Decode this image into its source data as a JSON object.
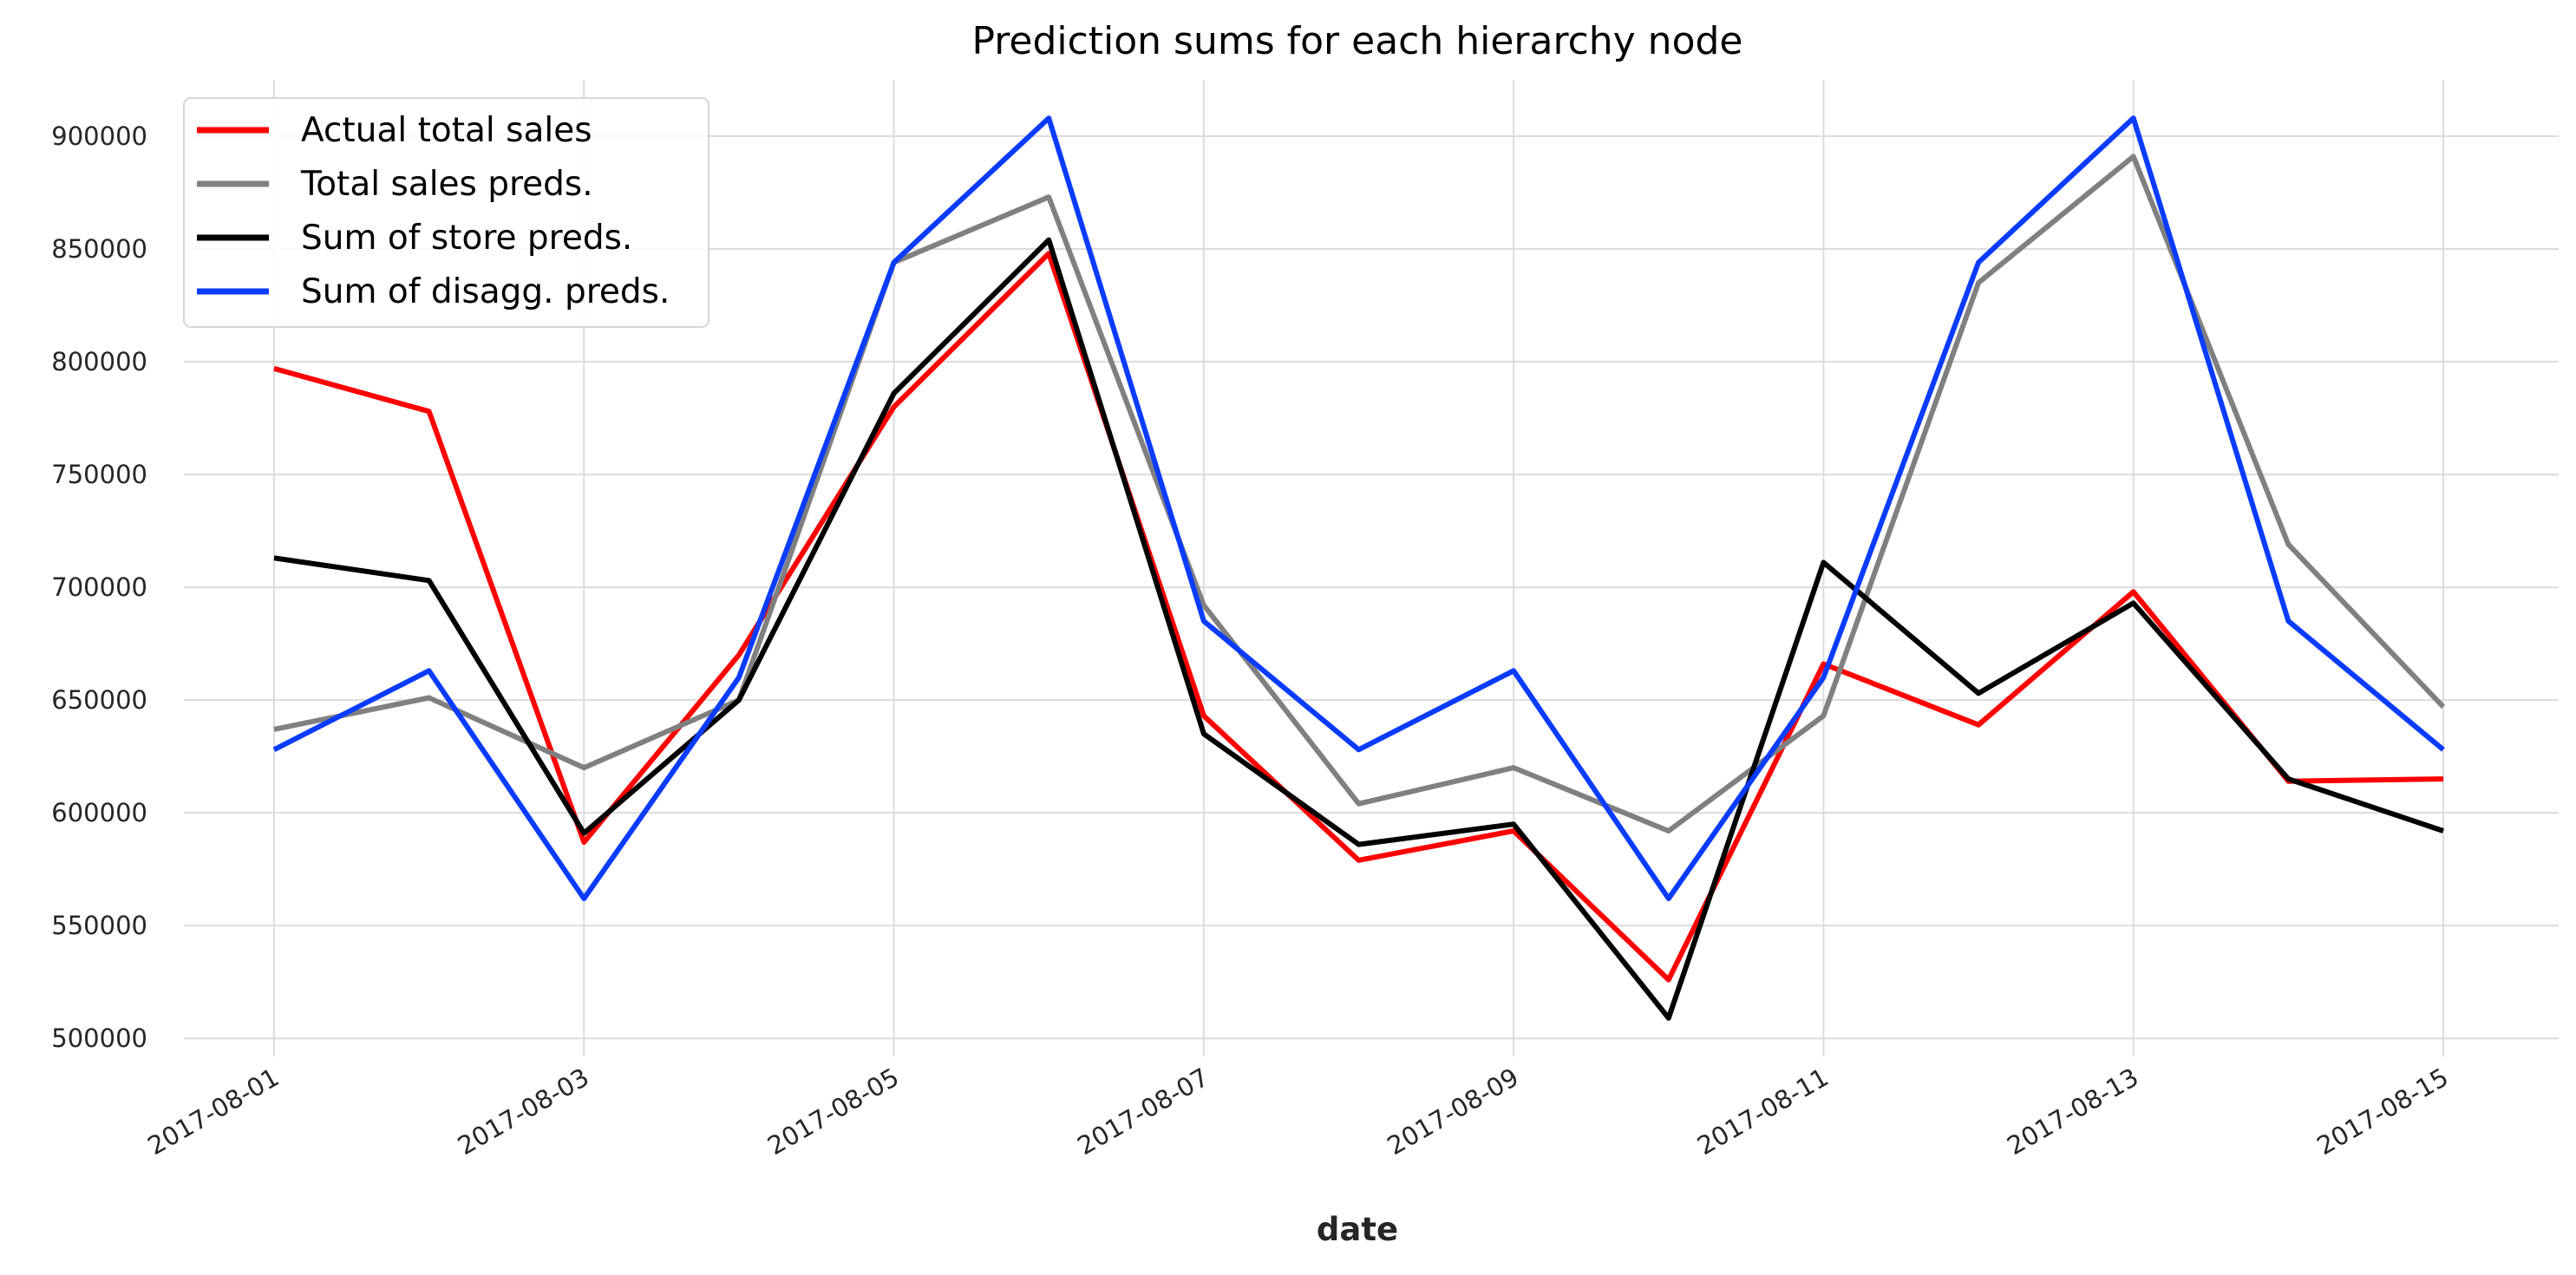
{
  "chart_data": {
    "type": "line",
    "title": "Prediction sums for each hierarchy node",
    "xlabel": "date",
    "ylabel": "",
    "x": [
      "2017-08-01",
      "2017-08-02",
      "2017-08-03",
      "2017-08-04",
      "2017-08-05",
      "2017-08-06",
      "2017-08-07",
      "2017-08-08",
      "2017-08-09",
      "2017-08-10",
      "2017-08-11",
      "2017-08-12",
      "2017-08-13",
      "2017-08-14",
      "2017-08-15"
    ],
    "x_tick_labels": [
      "2017-08-01",
      "2017-08-03",
      "2017-08-05",
      "2017-08-07",
      "2017-08-09",
      "2017-08-11",
      "2017-08-13",
      "2017-08-15"
    ],
    "y_ticks": [
      500000,
      550000,
      600000,
      650000,
      700000,
      750000,
      800000,
      850000,
      900000
    ],
    "ylim": [
      492000,
      925000
    ],
    "grid": true,
    "legend_position": "top-left",
    "series": [
      {
        "name": "Actual total sales",
        "color": "#ff0000",
        "values": [
          797000,
          778000,
          587000,
          670000,
          780000,
          848000,
          643000,
          579000,
          592000,
          526000,
          666000,
          639000,
          698000,
          614000,
          615000
        ]
      },
      {
        "name": "Total sales preds.",
        "color": "#808080",
        "values": [
          637000,
          651000,
          620000,
          650000,
          844000,
          873000,
          692000,
          604000,
          620000,
          592000,
          643000,
          835000,
          891000,
          719000,
          647000
        ]
      },
      {
        "name": "Sum of store preds.",
        "color": "#000000",
        "values": [
          713000,
          703000,
          591000,
          650000,
          786000,
          854000,
          635000,
          586000,
          595000,
          509000,
          711000,
          653000,
          693000,
          615000,
          592000
        ]
      },
      {
        "name": "Sum of disagg. preds.",
        "color": "#0a3cff",
        "values": [
          628000,
          663000,
          562000,
          660000,
          844000,
          908000,
          685000,
          628000,
          663000,
          562000,
          660000,
          844000,
          908000,
          685000,
          628000
        ]
      }
    ]
  }
}
